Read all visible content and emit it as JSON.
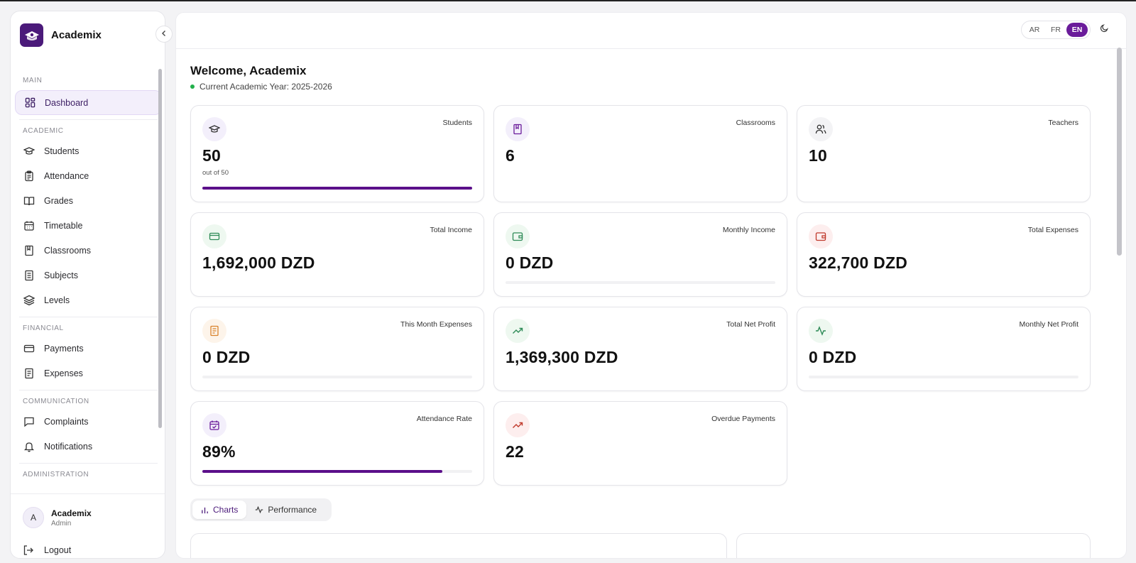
{
  "app": {
    "name": "Academix"
  },
  "sidebar": {
    "sections": [
      {
        "title": "MAIN",
        "items": [
          {
            "label": "Dashboard",
            "icon": "dashboard-icon",
            "active": true
          }
        ]
      },
      {
        "title": "ACADEMIC",
        "items": [
          {
            "label": "Students",
            "icon": "graduation-cap-icon"
          },
          {
            "label": "Attendance",
            "icon": "clipboard-icon"
          },
          {
            "label": "Grades",
            "icon": "book-open-icon"
          },
          {
            "label": "Timetable",
            "icon": "calendar-icon"
          },
          {
            "label": "Classrooms",
            "icon": "book-icon"
          },
          {
            "label": "Subjects",
            "icon": "notebook-icon"
          },
          {
            "label": "Levels",
            "icon": "layers-icon"
          }
        ]
      },
      {
        "title": "FINANCIAL",
        "items": [
          {
            "label": "Payments",
            "icon": "credit-card-icon"
          },
          {
            "label": "Expenses",
            "icon": "receipt-icon"
          }
        ]
      },
      {
        "title": "COMMUNICATION",
        "items": [
          {
            "label": "Complaints",
            "icon": "message-icon"
          },
          {
            "label": "Notifications",
            "icon": "bell-icon"
          }
        ]
      },
      {
        "title": "ADMINISTRATION",
        "items": []
      }
    ],
    "user": {
      "initial": "A",
      "name": "Academix",
      "role": "Admin"
    },
    "logout_label": "Logout"
  },
  "topbar": {
    "languages": [
      "AR",
      "FR",
      "EN"
    ],
    "active_language": "EN"
  },
  "header": {
    "welcome": "Welcome, Academix",
    "academic_year": "Current Academic Year: 2025-2026"
  },
  "stats": {
    "students": {
      "label": "Students",
      "value": "50",
      "sub": "out of 50",
      "progress": 1.0
    },
    "classrooms": {
      "label": "Classrooms",
      "value": "6"
    },
    "teachers": {
      "label": "Teachers",
      "value": "10"
    },
    "total_income": {
      "label": "Total Income",
      "value": "1,692,000 DZD"
    },
    "monthly_income": {
      "label": "Monthly Income",
      "value": "0 DZD",
      "progress": 0
    },
    "total_expenses": {
      "label": "Total Expenses",
      "value": "322,700 DZD"
    },
    "this_month_expenses": {
      "label": "This Month Expenses",
      "value": "0 DZD",
      "progress": 0
    },
    "total_net_profit": {
      "label": "Total Net Profit",
      "value": "1,369,300 DZD"
    },
    "monthly_net_profit": {
      "label": "Monthly Net Profit",
      "value": "0 DZD",
      "progress": 0
    },
    "attendance_rate": {
      "label": "Attendance Rate",
      "value": "89%",
      "progress": 0.89
    },
    "overdue_payments": {
      "label": "Overdue Payments",
      "value": "22"
    }
  },
  "tabs": [
    {
      "label": "Charts",
      "icon": "bar-chart-icon",
      "active": true
    },
    {
      "label": "Performance",
      "icon": "activity-icon",
      "active": false
    }
  ],
  "colors": {
    "accent": "#6a1b9a",
    "progress": "#5b0f8a",
    "green": "#2e8b57",
    "red": "#c0392b",
    "orange": "#d9822b"
  }
}
